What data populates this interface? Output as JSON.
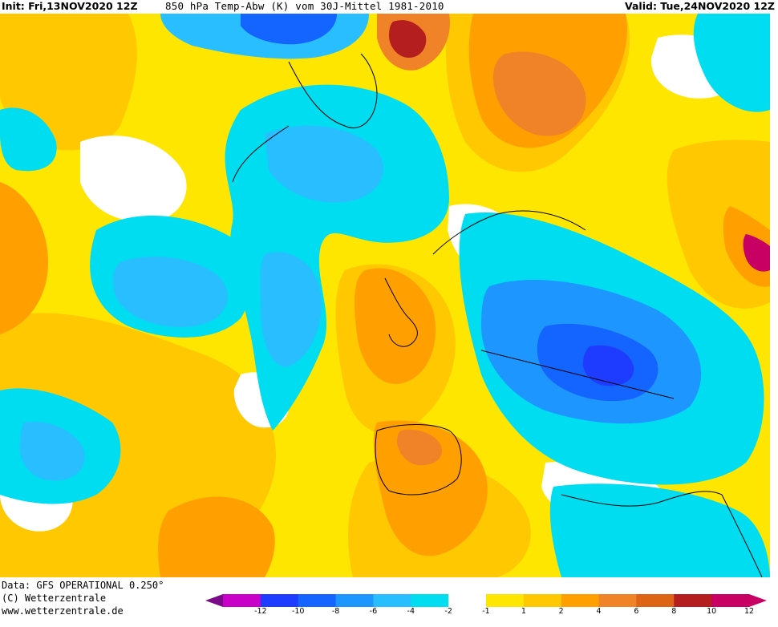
{
  "header": {
    "init": "Init: Fri,13NOV2020 12Z",
    "title": "850 hPa Temp-Abw (K) vom 30J-Mittel 1981-2010",
    "valid": "Valid: Tue,24NOV2020 12Z"
  },
  "footer": {
    "data_source": "Data: GFS OPERATIONAL 0.250°",
    "copyright": "(C) Wetterzentrale",
    "website": "www.wetterzentrale.de"
  },
  "legend": {
    "ticks": [
      "-12",
      "-10",
      "-8",
      "-6",
      "-4",
      "-2",
      "-1",
      "1",
      "2",
      "4",
      "6",
      "8",
      "10",
      "12"
    ],
    "colors": [
      "#c800c8",
      "#1e3cff",
      "#1464ff",
      "#1e96ff",
      "#28beff",
      "#00dcf0",
      "#ffffff",
      "#ffe600",
      "#ffc800",
      "#ffa000",
      "#f08228",
      "#dc6414",
      "#b41e1e",
      "#c80064"
    ]
  },
  "map": {
    "map_colors": {
      "yellow": "#ffe600",
      "gold": "#ffc800",
      "orange": "#ffa000",
      "dark_orange": "#f08228",
      "red": "#b41e1e",
      "magenta": "#c80064",
      "light_blue": "#28beff",
      "cyan": "#00dcf0",
      "blue": "#1e96ff",
      "dark_blue": "#1464ff",
      "deep_blue": "#1e3cff"
    }
  }
}
